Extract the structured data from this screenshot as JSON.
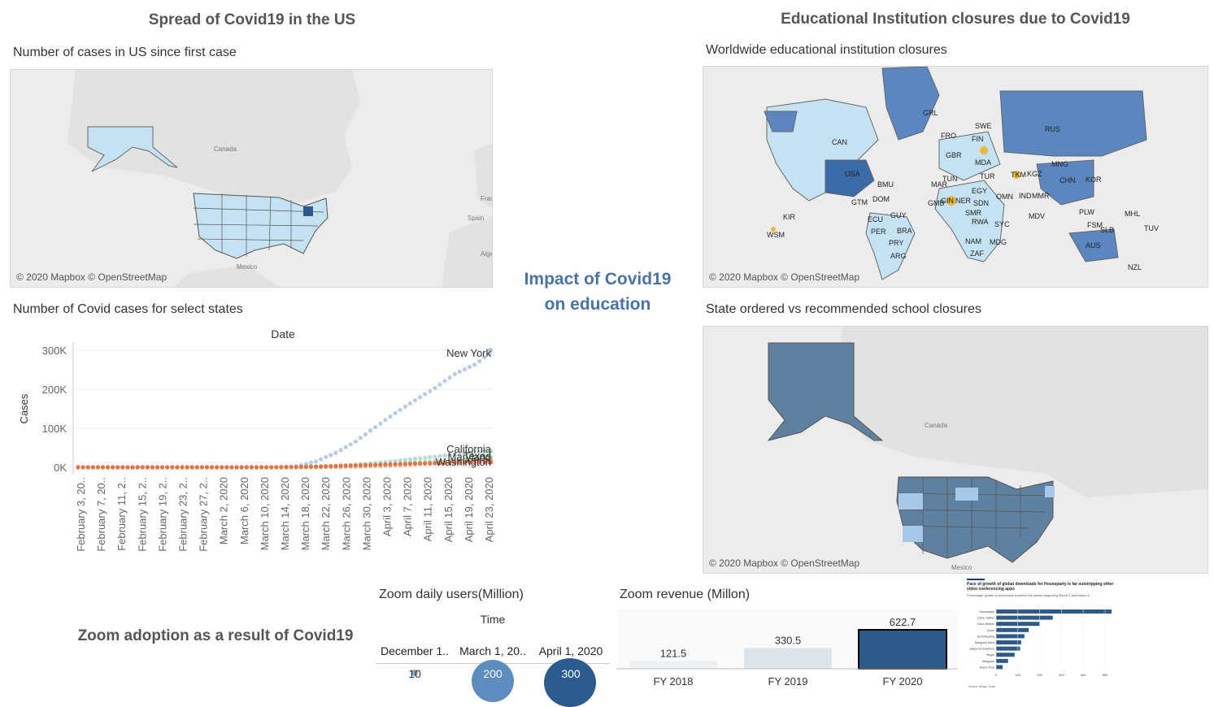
{
  "titles": {
    "us_spread": "Spread of Covid19 in the US",
    "edu_closures": "Educational Institution closures due to Covid19",
    "impact_line1": "Impact of Covid19",
    "impact_line2": "on education",
    "zoom_adoption": "Zoom adoption as a result of Covid19"
  },
  "us_map": {
    "subtitle": "Number of cases in US since first case",
    "credit": "© 2020 Mapbox © OpenStreetMap",
    "labels": {
      "canada": "Canada",
      "mexico": "Mexico",
      "france": "Fran",
      "spain": "Spain",
      "algeria": "Alge"
    }
  },
  "world_map": {
    "subtitle": "Worldwide educational institution closures",
    "credit": "© 2020 Mapbox © OpenStreetMap",
    "country_codes": [
      "GRL",
      "CAN",
      "USA",
      "BMU",
      "DOM",
      "GTM",
      "ECU",
      "PER",
      "BRA",
      "PRY",
      "ARG",
      "GUY",
      "KIR",
      "WSM",
      "FRO",
      "SWE",
      "GBR",
      "FIN",
      "MDA",
      "RUS",
      "MNG",
      "CHN",
      "KOR",
      "TUR",
      "TKM",
      "KGZ",
      "MAR",
      "TUN",
      "EGY",
      "NER",
      "SDN",
      "OMN",
      "IND",
      "MMR",
      "GMB",
      "GIN",
      "SMR",
      "RWA",
      "SYC",
      "MDV",
      "NAM",
      "MDG",
      "ZAF",
      "PLW",
      "FSM",
      "SLB",
      "MHL",
      "TUV",
      "AUS",
      "NZL"
    ]
  },
  "cases_chart": {
    "subtitle": "Number of Covid cases for select states",
    "header": "Date",
    "ylabel": "Cases"
  },
  "state_map": {
    "subtitle": "State ordered vs recommended school closures",
    "credit": "© 2020 Mapbox © OpenStreetMap",
    "labels": {
      "canada": "Canada",
      "mexico": "Mexico"
    }
  },
  "zoom_users": {
    "subtitle": "Zoom daily users(Million)",
    "header": "Time",
    "columns": [
      "December 1..",
      "March 1, 20..",
      "April 1, 2020"
    ],
    "values": [
      "10",
      "200",
      "300"
    ]
  },
  "zoom_revenue": {
    "subtitle": "Zoom revenue (Millon)"
  },
  "houseparty": {
    "title": "Pace of growth of global downloads for Houseparty is far outstripping other video conferencing apps",
    "sub": "Percentage growth in downloads between the weeks beginning March 2 and March 9",
    "apps": [
      "Houseparty",
      "Cisco Jabber",
      "Cisco Webex",
      "Zoom",
      "GoToMeeting",
      "Hangouts Meet",
      "Skype for Business",
      "Skype",
      "Hangouts",
      "Marco Polo"
    ],
    "values": [
      530,
      260,
      200,
      150,
      130,
      115,
      110,
      85,
      55,
      30
    ],
    "ticks": [
      "0",
      "100",
      "200",
      "300",
      "400",
      "500"
    ],
    "source": "Source: Sensor Tower"
  },
  "chart_data": [
    {
      "type": "scatter",
      "title": "Number of Covid cases for select states",
      "xlabel": "Date",
      "ylabel": "Cases",
      "ylim": [
        0,
        300000
      ],
      "y_ticks": [
        "0K",
        "100K",
        "200K",
        "300K"
      ],
      "x_ticks": [
        "February 3, 20..",
        "February 7, 20..",
        "February 11, 2..",
        "February 15, 2..",
        "February 19, 2..",
        "February 23, 2..",
        "February 27, 2..",
        "March 2, 2020",
        "March 6, 2020",
        "March 10, 2020",
        "March 14, 2020",
        "March 18, 2020",
        "March 22, 2020",
        "March 26, 2020",
        "March 30, 2020",
        "April 3, 2020",
        "April 7, 2020",
        "April 11, 2020",
        "April 15, 2020",
        "April 19, 2020",
        "April 23, 2020"
      ],
      "series": [
        {
          "name": "New York",
          "color": "#a9bfd8",
          "values": [
            0,
            0,
            0,
            0,
            0,
            0,
            0,
            0,
            0,
            0,
            100,
            2400,
            15000,
            37000,
            66000,
            103000,
            139000,
            172000,
            203000,
            239000,
            263000,
            300000
          ]
        },
        {
          "name": "California",
          "color": "#a8d4c0",
          "values": [
            0,
            0,
            0,
            0,
            0,
            0,
            0,
            0,
            0,
            0,
            0,
            700,
            1700,
            3800,
            6300,
            11000,
            16000,
            22000,
            27000,
            33000,
            39000,
            42000
          ]
        },
        {
          "name": "Texas",
          "color": "#9fcfa0",
          "values": [
            0,
            0,
            0,
            0,
            0,
            0,
            0,
            0,
            0,
            0,
            0,
            100,
            500,
            1400,
            3000,
            5700,
            8300,
            12000,
            15000,
            18000,
            21000,
            24000
          ]
        },
        {
          "name": "Maryland",
          "color": "#f0b27a",
          "values": [
            0,
            0,
            0,
            0,
            0,
            0,
            0,
            0,
            0,
            0,
            0,
            60,
            200,
            600,
            1400,
            2800,
            4300,
            7000,
            9500,
            12800,
            15400,
            18000
          ]
        },
        {
          "name": "Washington",
          "color": "#e4603a",
          "values": [
            0,
            0,
            0,
            0,
            0,
            0,
            0,
            0,
            0,
            0,
            100,
            900,
            2000,
            3200,
            5000,
            6400,
            7900,
            9500,
            10600,
            11800,
            12500,
            13000
          ]
        }
      ]
    },
    {
      "type": "bar",
      "title": "Zoom revenue (Millon)",
      "categories": [
        "FY 2018",
        "FY 2019",
        "FY 2020"
      ],
      "values": [
        121.5,
        330.5,
        622.7
      ],
      "value_labels": [
        "121.5",
        "330.5",
        "622.7"
      ]
    }
  ]
}
